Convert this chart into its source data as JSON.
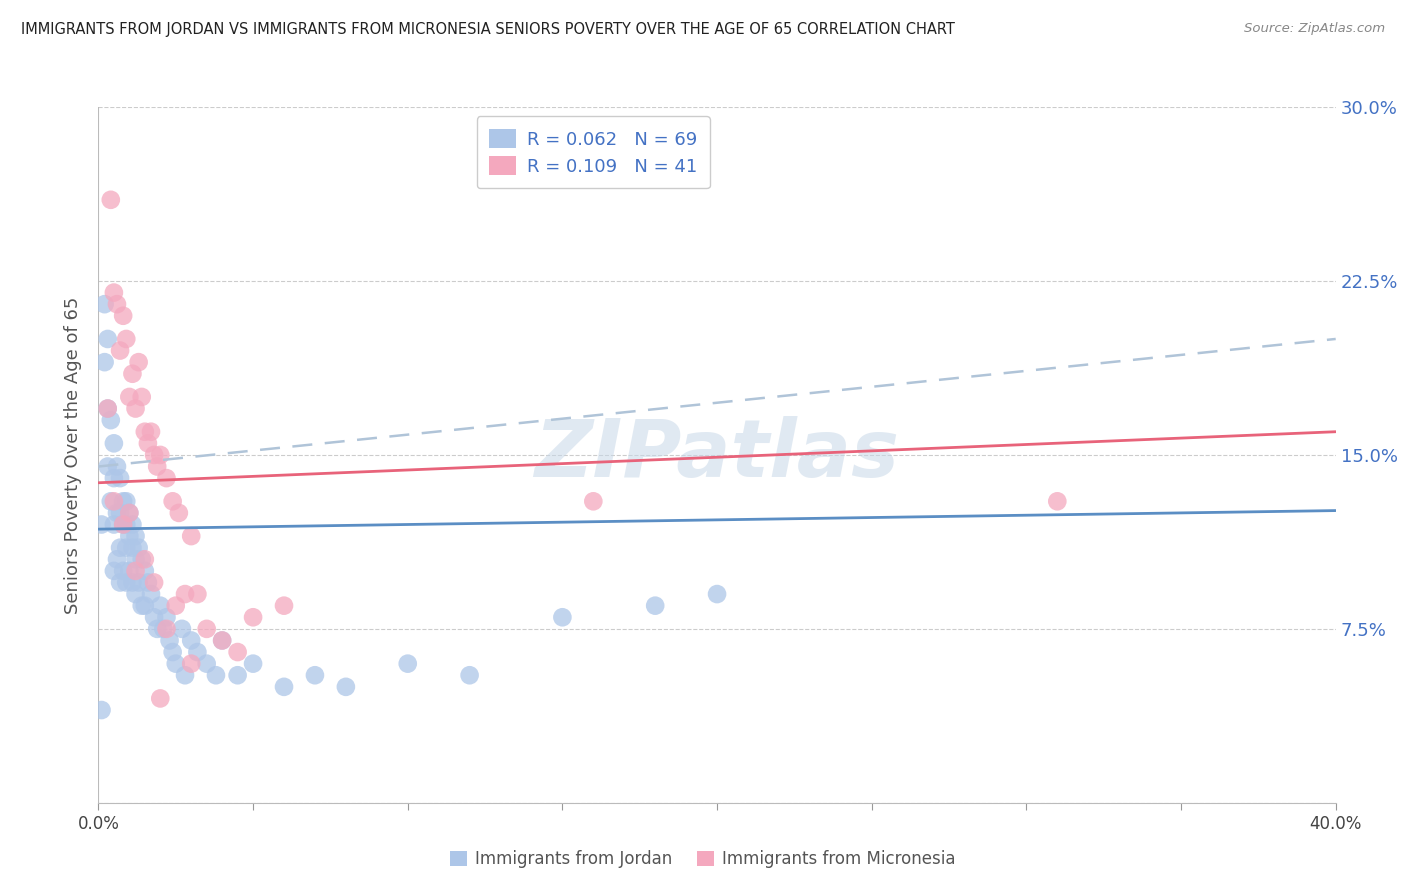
{
  "title": "IMMIGRANTS FROM JORDAN VS IMMIGRANTS FROM MICRONESIA SENIORS POVERTY OVER THE AGE OF 65 CORRELATION CHART",
  "source": "Source: ZipAtlas.com",
  "ylabel": "Seniors Poverty Over the Age of 65",
  "ylim": [
    0.0,
    0.3
  ],
  "xlim": [
    0.0,
    0.4
  ],
  "yticks": [
    0.0,
    0.075,
    0.15,
    0.225,
    0.3
  ],
  "ytick_labels": [
    "",
    "7.5%",
    "15.0%",
    "22.5%",
    "30.0%"
  ],
  "xticks": [
    0.0,
    0.05,
    0.1,
    0.15,
    0.2,
    0.25,
    0.3,
    0.35,
    0.4
  ],
  "jordan_R": 0.062,
  "jordan_N": 69,
  "micronesia_R": 0.109,
  "micronesia_N": 41,
  "jordan_color": "#adc6e8",
  "micronesia_color": "#f4a8be",
  "jordan_line_color": "#5b8ec4",
  "micronesia_line_color": "#e8637a",
  "dash_line_color": "#b0c4d8",
  "watermark": "ZIPatlas",
  "jordan_scatter_x": [
    0.001,
    0.002,
    0.002,
    0.003,
    0.003,
    0.003,
    0.004,
    0.004,
    0.005,
    0.005,
    0.005,
    0.005,
    0.006,
    0.006,
    0.006,
    0.007,
    0.007,
    0.007,
    0.007,
    0.008,
    0.008,
    0.008,
    0.009,
    0.009,
    0.009,
    0.009,
    0.01,
    0.01,
    0.01,
    0.011,
    0.011,
    0.011,
    0.012,
    0.012,
    0.012,
    0.013,
    0.013,
    0.014,
    0.014,
    0.015,
    0.015,
    0.016,
    0.017,
    0.018,
    0.019,
    0.02,
    0.021,
    0.022,
    0.023,
    0.024,
    0.025,
    0.027,
    0.028,
    0.03,
    0.032,
    0.035,
    0.038,
    0.04,
    0.045,
    0.05,
    0.06,
    0.07,
    0.08,
    0.1,
    0.12,
    0.15,
    0.18,
    0.2,
    0.001
  ],
  "jordan_scatter_y": [
    0.12,
    0.215,
    0.19,
    0.2,
    0.17,
    0.145,
    0.165,
    0.13,
    0.155,
    0.14,
    0.12,
    0.1,
    0.145,
    0.125,
    0.105,
    0.14,
    0.125,
    0.11,
    0.095,
    0.13,
    0.12,
    0.1,
    0.13,
    0.12,
    0.11,
    0.095,
    0.125,
    0.115,
    0.1,
    0.12,
    0.11,
    0.095,
    0.115,
    0.105,
    0.09,
    0.11,
    0.095,
    0.105,
    0.085,
    0.1,
    0.085,
    0.095,
    0.09,
    0.08,
    0.075,
    0.085,
    0.075,
    0.08,
    0.07,
    0.065,
    0.06,
    0.075,
    0.055,
    0.07,
    0.065,
    0.06,
    0.055,
    0.07,
    0.055,
    0.06,
    0.05,
    0.055,
    0.05,
    0.06,
    0.055,
    0.08,
    0.085,
    0.09,
    0.04
  ],
  "micronesia_scatter_x": [
    0.003,
    0.004,
    0.005,
    0.006,
    0.007,
    0.008,
    0.009,
    0.01,
    0.011,
    0.012,
    0.013,
    0.014,
    0.015,
    0.016,
    0.017,
    0.018,
    0.019,
    0.02,
    0.022,
    0.024,
    0.026,
    0.028,
    0.03,
    0.032,
    0.035,
    0.04,
    0.045,
    0.05,
    0.06,
    0.31,
    0.005,
    0.008,
    0.01,
    0.012,
    0.015,
    0.018,
    0.022,
    0.025,
    0.03,
    0.16,
    0.02
  ],
  "micronesia_scatter_y": [
    0.17,
    0.26,
    0.22,
    0.215,
    0.195,
    0.21,
    0.2,
    0.175,
    0.185,
    0.17,
    0.19,
    0.175,
    0.16,
    0.155,
    0.16,
    0.15,
    0.145,
    0.15,
    0.14,
    0.13,
    0.125,
    0.09,
    0.115,
    0.09,
    0.075,
    0.07,
    0.065,
    0.08,
    0.085,
    0.13,
    0.13,
    0.12,
    0.125,
    0.1,
    0.105,
    0.095,
    0.075,
    0.085,
    0.06,
    0.13,
    0.045
  ],
  "jordan_trend_start_x": 0.0,
  "jordan_trend_end_x": 0.4,
  "jordan_trend_start_y": 0.118,
  "jordan_trend_end_y": 0.126,
  "micronesia_trend_start_x": 0.0,
  "micronesia_trend_end_x": 0.4,
  "micronesia_trend_start_y": 0.138,
  "micronesia_trend_end_y": 0.16,
  "dash_trend_start_x": 0.0,
  "dash_trend_end_x": 0.4,
  "dash_trend_start_y": 0.145,
  "dash_trend_end_y": 0.2
}
